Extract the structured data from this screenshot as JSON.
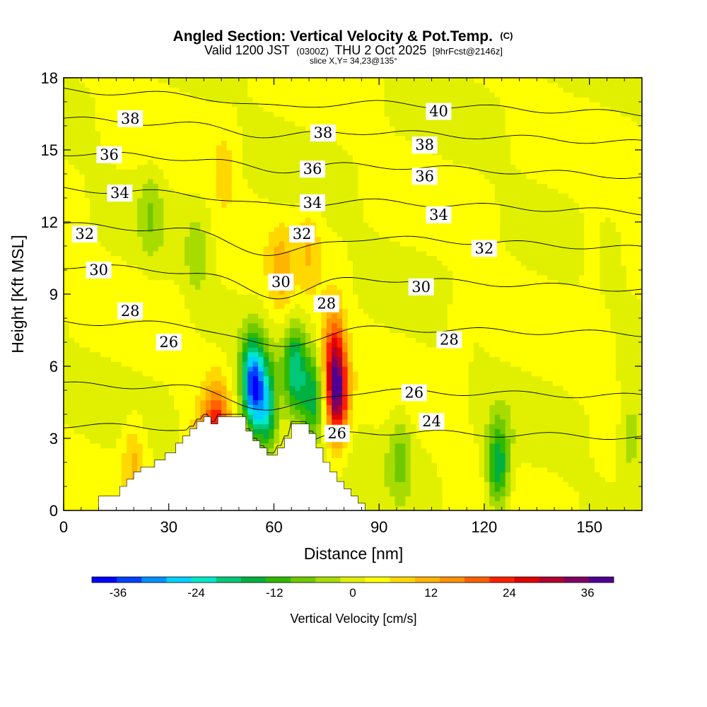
{
  "chart_data": {
    "type": "heatmap",
    "title": "Angled Section: Vertical Velocity & Pot.Temp.",
    "title_unit": "(C)",
    "subtitle_valid": "Valid 1200 JST",
    "subtitle_utc": "(0300Z)",
    "subtitle_date": "THU 2 Oct 2025",
    "subtitle_fcst": "[9hrFcst@2146z]",
    "slice_label": "slice X,Y= 34,23@135°",
    "xlabel": "Distance [nm]",
    "ylabel": "Height [Kft MSL]",
    "xlim": [
      0,
      165
    ],
    "ylim": [
      0,
      18
    ],
    "x_ticks": [
      "0",
      "30",
      "60",
      "90",
      "120",
      "150"
    ],
    "y_ticks": [
      "0",
      "3",
      "6",
      "9",
      "12",
      "15",
      "18"
    ],
    "colorbar": {
      "label": "Vertical Velocity [cm/s]",
      "ticks": [
        "-36",
        "-24",
        "-12",
        "0",
        "12",
        "24",
        "36"
      ],
      "min": -40,
      "max": 40,
      "colors": [
        "#0000ff",
        "#0040ff",
        "#0090ff",
        "#00d0ff",
        "#00e8c8",
        "#00c878",
        "#00b040",
        "#30b800",
        "#70c800",
        "#a8dc00",
        "#e0f000",
        "#ffff00",
        "#ffd800",
        "#ffb400",
        "#ff9000",
        "#ff6000",
        "#ff2000",
        "#e00000",
        "#b00030",
        "#800060",
        "#500090"
      ]
    },
    "terrain_profile": {
      "x": [
        0,
        10,
        10,
        16,
        16,
        18,
        18,
        20,
        20,
        22,
        22,
        26,
        26,
        29,
        29,
        32,
        32,
        34,
        34,
        36,
        36,
        38,
        38,
        40,
        40,
        42,
        42,
        44,
        44,
        52,
        52,
        54,
        54,
        56,
        56,
        58,
        58,
        61,
        61,
        63,
        63,
        65,
        65,
        70,
        70,
        72,
        72,
        74,
        74,
        76,
        76,
        78,
        78,
        80,
        80,
        82,
        82,
        84,
        84,
        86,
        86,
        165
      ],
      "y": [
        0,
        0,
        0.6,
        0.6,
        1.0,
        1.0,
        1.3,
        1.3,
        1.6,
        1.6,
        1.8,
        1.8,
        2.1,
        2.1,
        2.4,
        2.4,
        2.8,
        2.8,
        3.1,
        3.1,
        3.4,
        3.4,
        3.7,
        3.7,
        3.9,
        3.9,
        3.6,
        3.6,
        3.9,
        3.9,
        3.3,
        3.3,
        2.9,
        2.9,
        2.6,
        2.6,
        2.3,
        2.3,
        2.6,
        2.6,
        3.0,
        3.0,
        3.6,
        3.6,
        3.2,
        3.2,
        2.6,
        2.6,
        2.0,
        2.0,
        1.6,
        1.6,
        1.2,
        1.2,
        0.9,
        0.9,
        0.6,
        0.6,
        0.3,
        0.3,
        0,
        0
      ]
    },
    "velocity_features": [
      {
        "x": 54,
        "z": 5.2,
        "w": -36
      },
      {
        "x": 58,
        "z": 4.2,
        "w": -22
      },
      {
        "x": 66,
        "z": 5.8,
        "w": -20
      },
      {
        "x": 71,
        "z": 4.6,
        "w": -16
      },
      {
        "x": 78,
        "z": 4.8,
        "w": 32
      },
      {
        "x": 77,
        "z": 6.8,
        "w": 16
      },
      {
        "x": 44,
        "z": 3.6,
        "w": 18
      },
      {
        "x": 40,
        "z": 2.8,
        "w": 10
      },
      {
        "x": 20,
        "z": 2.2,
        "w": 8
      },
      {
        "x": 46,
        "z": 14,
        "w": 5
      },
      {
        "x": 62,
        "z": 9.8,
        "w": 8
      },
      {
        "x": 70,
        "z": 11,
        "w": 6
      },
      {
        "x": 124,
        "z": 1.8,
        "w": -20
      },
      {
        "x": 96,
        "z": 2.4,
        "w": -8
      },
      {
        "x": 162,
        "z": 3.0,
        "w": -8
      },
      {
        "x": 150,
        "z": 11,
        "w": 3
      },
      {
        "x": 112,
        "z": 7.5,
        "w": 3
      },
      {
        "x": 25,
        "z": 12.5,
        "w": -6
      },
      {
        "x": 38,
        "z": 10.5,
        "w": -6
      }
    ],
    "potential_temperature": {
      "levels": [
        24,
        26,
        28,
        30,
        32,
        34,
        36,
        38,
        40
      ],
      "labels": [
        {
          "text": "24",
          "x": 105,
          "z": 3.7
        },
        {
          "text": "26",
          "x": 30,
          "z": 7.0
        },
        {
          "text": "26",
          "x": 100,
          "z": 4.9
        },
        {
          "text": "26",
          "x": 78,
          "z": 3.2
        },
        {
          "text": "28",
          "x": 19,
          "z": 8.3
        },
        {
          "text": "28",
          "x": 75,
          "z": 8.6
        },
        {
          "text": "28",
          "x": 110,
          "z": 7.1
        },
        {
          "text": "30",
          "x": 10,
          "z": 10.0
        },
        {
          "text": "30",
          "x": 62,
          "z": 9.5
        },
        {
          "text": "30",
          "x": 102,
          "z": 9.3
        },
        {
          "text": "32",
          "x": 6,
          "z": 11.5
        },
        {
          "text": "32",
          "x": 68,
          "z": 11.5
        },
        {
          "text": "32",
          "x": 120,
          "z": 10.9
        },
        {
          "text": "34",
          "x": 16,
          "z": 13.2
        },
        {
          "text": "34",
          "x": 71,
          "z": 12.8
        },
        {
          "text": "34",
          "x": 107,
          "z": 12.3
        },
        {
          "text": "36",
          "x": 13,
          "z": 14.8
        },
        {
          "text": "36",
          "x": 71,
          "z": 14.2
        },
        {
          "text": "36",
          "x": 103,
          "z": 13.9
        },
        {
          "text": "38",
          "x": 19,
          "z": 16.3
        },
        {
          "text": "38",
          "x": 74,
          "z": 15.7
        },
        {
          "text": "38",
          "x": 103,
          "z": 15.2
        },
        {
          "text": "40",
          "x": 107,
          "z": 16.6
        }
      ]
    }
  }
}
